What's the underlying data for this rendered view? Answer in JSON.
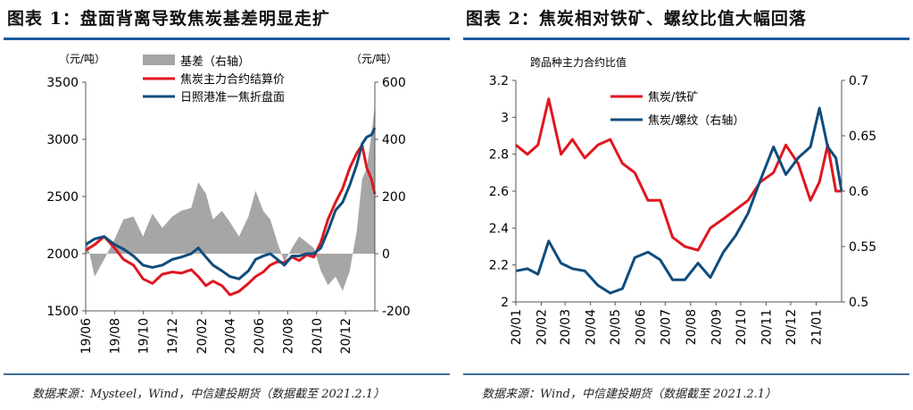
{
  "left": {
    "title": "图表 1：盘面背离导致焦炭基差明显走扩",
    "source": "数据来源：Mysteel，Wind，中信建投期货（数据截至 2021.2.1）",
    "chart_data": {
      "type": "line",
      "y_left_unit": "（元/吨）",
      "y_right_unit": "（元/吨）",
      "ylim_left": [
        1500,
        3500
      ],
      "ylim_right": [
        -200,
        600
      ],
      "yticks_left": [
        "1500",
        "2000",
        "2500",
        "3000",
        "3500"
      ],
      "yticks_right": [
        "-200",
        "0",
        "200",
        "400",
        "600"
      ],
      "xticks": [
        "19/06",
        "19/08",
        "19/10",
        "19/12",
        "20/02",
        "20/04",
        "20/06",
        "20/08",
        "20/10",
        "20/12"
      ],
      "xlim": [
        "2019-06-01",
        "2021-02-01"
      ],
      "legend_position": "top-center",
      "series": [
        {
          "name": "基差（右轴）",
          "axis": "right",
          "kind": "area",
          "color": "#a6a6a6",
          "points": [
            [
              "2019-06-01",
              60
            ],
            [
              "2019-06-20",
              -80
            ],
            [
              "2019-07-10",
              -20
            ],
            [
              "2019-08-01",
              50
            ],
            [
              "2019-08-20",
              120
            ],
            [
              "2019-09-10",
              130
            ],
            [
              "2019-09-30",
              60
            ],
            [
              "2019-10-20",
              140
            ],
            [
              "2019-11-10",
              90
            ],
            [
              "2019-12-01",
              130
            ],
            [
              "2019-12-20",
              150
            ],
            [
              "2020-01-10",
              160
            ],
            [
              "2020-01-25",
              250
            ],
            [
              "2020-02-10",
              210
            ],
            [
              "2020-02-25",
              120
            ],
            [
              "2020-03-15",
              150
            ],
            [
              "2020-04-01",
              110
            ],
            [
              "2020-04-20",
              60
            ],
            [
              "2020-05-10",
              130
            ],
            [
              "2020-05-25",
              220
            ],
            [
              "2020-06-10",
              150
            ],
            [
              "2020-06-25",
              120
            ],
            [
              "2020-07-10",
              40
            ],
            [
              "2020-07-25",
              -30
            ],
            [
              "2020-08-10",
              20
            ],
            [
              "2020-08-25",
              60
            ],
            [
              "2020-09-10",
              40
            ],
            [
              "2020-09-25",
              20
            ],
            [
              "2020-10-10",
              -60
            ],
            [
              "2020-10-25",
              -110
            ],
            [
              "2020-11-10",
              -80
            ],
            [
              "2020-11-25",
              -130
            ],
            [
              "2020-12-10",
              -60
            ],
            [
              "2020-12-25",
              80
            ],
            [
              "2021-01-05",
              260
            ],
            [
              "2021-01-15",
              300
            ],
            [
              "2021-01-25",
              420
            ],
            [
              "2021-02-01",
              520
            ]
          ]
        },
        {
          "name": "焦炭主力合约结算价",
          "axis": "left",
          "kind": "line",
          "color": "#e0161e",
          "points": [
            [
              "2019-06-01",
              2030
            ],
            [
              "2019-06-20",
              2080
            ],
            [
              "2019-07-10",
              2150
            ],
            [
              "2019-08-01",
              2050
            ],
            [
              "2019-08-20",
              1950
            ],
            [
              "2019-09-10",
              1900
            ],
            [
              "2019-09-30",
              1780
            ],
            [
              "2019-10-20",
              1740
            ],
            [
              "2019-11-10",
              1820
            ],
            [
              "2019-12-01",
              1840
            ],
            [
              "2019-12-20",
              1830
            ],
            [
              "2020-01-10",
              1860
            ],
            [
              "2020-01-25",
              1800
            ],
            [
              "2020-02-10",
              1720
            ],
            [
              "2020-02-25",
              1760
            ],
            [
              "2020-03-15",
              1720
            ],
            [
              "2020-04-01",
              1640
            ],
            [
              "2020-04-20",
              1670
            ],
            [
              "2020-05-10",
              1740
            ],
            [
              "2020-05-25",
              1800
            ],
            [
              "2020-06-10",
              1840
            ],
            [
              "2020-06-25",
              1900
            ],
            [
              "2020-07-10",
              1930
            ],
            [
              "2020-07-25",
              1920
            ],
            [
              "2020-08-10",
              1970
            ],
            [
              "2020-08-25",
              1940
            ],
            [
              "2020-09-10",
              1990
            ],
            [
              "2020-09-25",
              1970
            ],
            [
              "2020-10-10",
              2100
            ],
            [
              "2020-10-25",
              2300
            ],
            [
              "2020-11-10",
              2450
            ],
            [
              "2020-11-25",
              2570
            ],
            [
              "2020-12-10",
              2750
            ],
            [
              "2020-12-25",
              2880
            ],
            [
              "2021-01-05",
              2950
            ],
            [
              "2021-01-15",
              2750
            ],
            [
              "2021-01-25",
              2650
            ],
            [
              "2021-02-01",
              2520
            ]
          ]
        },
        {
          "name": "日照港准一焦折盘面",
          "axis": "left",
          "kind": "line",
          "color": "#0f4c7c",
          "points": [
            [
              "2019-06-01",
              2080
            ],
            [
              "2019-06-20",
              2130
            ],
            [
              "2019-07-10",
              2150
            ],
            [
              "2019-08-01",
              2080
            ],
            [
              "2019-08-20",
              2040
            ],
            [
              "2019-09-10",
              1980
            ],
            [
              "2019-09-30",
              1900
            ],
            [
              "2019-10-20",
              1880
            ],
            [
              "2019-11-10",
              1900
            ],
            [
              "2019-12-01",
              1950
            ],
            [
              "2019-12-20",
              1970
            ],
            [
              "2020-01-10",
              2000
            ],
            [
              "2020-01-25",
              2050
            ],
            [
              "2020-02-10",
              1970
            ],
            [
              "2020-02-25",
              1900
            ],
            [
              "2020-03-15",
              1850
            ],
            [
              "2020-04-01",
              1800
            ],
            [
              "2020-04-20",
              1780
            ],
            [
              "2020-05-10",
              1850
            ],
            [
              "2020-05-25",
              1950
            ],
            [
              "2020-06-10",
              1980
            ],
            [
              "2020-06-25",
              2000
            ],
            [
              "2020-07-10",
              1950
            ],
            [
              "2020-07-25",
              1900
            ],
            [
              "2020-08-10",
              1980
            ],
            [
              "2020-08-25",
              1980
            ],
            [
              "2020-09-10",
              2000
            ],
            [
              "2020-09-25",
              2000
            ],
            [
              "2020-10-10",
              2050
            ],
            [
              "2020-10-25",
              2200
            ],
            [
              "2020-11-10",
              2380
            ],
            [
              "2020-11-25",
              2450
            ],
            [
              "2020-12-10",
              2600
            ],
            [
              "2020-12-25",
              2780
            ],
            [
              "2021-01-05",
              2960
            ],
            [
              "2021-01-15",
              3020
            ],
            [
              "2021-01-25",
              3040
            ],
            [
              "2021-02-01",
              3100
            ]
          ]
        }
      ]
    }
  },
  "right": {
    "title": "图表 2：焦炭相对铁矿、螺纹比值大幅回落",
    "source": "数据来源：Wind，中信建投期货（数据截至 2021.2.1）",
    "chart_data": {
      "type": "line",
      "subtitle": "跨品种主力合约比值",
      "ylim_left": [
        2.0,
        3.2
      ],
      "ylim_right": [
        0.5,
        0.7
      ],
      "yticks_left": [
        "2",
        "2.2",
        "2.4",
        "2.6",
        "2.8",
        "3",
        "3.2"
      ],
      "yticks_right": [
        "0.5",
        "0.55",
        "0.6",
        "0.65",
        "0.7"
      ],
      "xticks": [
        "20/01",
        "20/02",
        "20/03",
        "20/04",
        "20/05",
        "20/06",
        "20/07",
        "20/08",
        "20/09",
        "20/10",
        "20/11",
        "20/12",
        "21/01"
      ],
      "xlim": [
        "2020-01-01",
        "2021-02-01"
      ],
      "legend_position": "top-center",
      "series": [
        {
          "name": "焦炭/铁矿",
          "axis": "left",
          "kind": "line",
          "color": "#e0161e",
          "points": [
            [
              "2020-01-01",
              2.85
            ],
            [
              "2020-01-15",
              2.8
            ],
            [
              "2020-01-28",
              2.85
            ],
            [
              "2020-02-10",
              3.1
            ],
            [
              "2020-02-25",
              2.8
            ],
            [
              "2020-03-10",
              2.88
            ],
            [
              "2020-03-25",
              2.78
            ],
            [
              "2020-04-10",
              2.85
            ],
            [
              "2020-04-25",
              2.88
            ],
            [
              "2020-05-10",
              2.75
            ],
            [
              "2020-05-25",
              2.7
            ],
            [
              "2020-06-10",
              2.55
            ],
            [
              "2020-06-25",
              2.55
            ],
            [
              "2020-07-10",
              2.35
            ],
            [
              "2020-07-25",
              2.3
            ],
            [
              "2020-08-10",
              2.28
            ],
            [
              "2020-08-25",
              2.4
            ],
            [
              "2020-09-10",
              2.45
            ],
            [
              "2020-09-25",
              2.5
            ],
            [
              "2020-10-10",
              2.55
            ],
            [
              "2020-10-25",
              2.65
            ],
            [
              "2020-11-10",
              2.7
            ],
            [
              "2020-11-25",
              2.85
            ],
            [
              "2020-12-10",
              2.75
            ],
            [
              "2020-12-25",
              2.55
            ],
            [
              "2021-01-05",
              2.65
            ],
            [
              "2021-01-15",
              2.85
            ],
            [
              "2021-01-25",
              2.6
            ],
            [
              "2021-02-01",
              2.6
            ]
          ]
        },
        {
          "name": "焦炭/螺纹（右轴）",
          "axis": "right",
          "kind": "line",
          "color": "#0f4c7c",
          "points": [
            [
              "2020-01-01",
              0.528
            ],
            [
              "2020-01-15",
              0.53
            ],
            [
              "2020-01-28",
              0.525
            ],
            [
              "2020-02-10",
              0.555
            ],
            [
              "2020-02-25",
              0.535
            ],
            [
              "2020-03-10",
              0.53
            ],
            [
              "2020-03-25",
              0.528
            ],
            [
              "2020-04-10",
              0.515
            ],
            [
              "2020-04-25",
              0.508
            ],
            [
              "2020-05-10",
              0.512
            ],
            [
              "2020-05-25",
              0.54
            ],
            [
              "2020-06-10",
              0.545
            ],
            [
              "2020-06-25",
              0.538
            ],
            [
              "2020-07-10",
              0.52
            ],
            [
              "2020-07-25",
              0.52
            ],
            [
              "2020-08-10",
              0.535
            ],
            [
              "2020-08-25",
              0.522
            ],
            [
              "2020-09-10",
              0.545
            ],
            [
              "2020-09-25",
              0.56
            ],
            [
              "2020-10-10",
              0.58
            ],
            [
              "2020-10-25",
              0.61
            ],
            [
              "2020-11-10",
              0.64
            ],
            [
              "2020-11-25",
              0.615
            ],
            [
              "2020-12-10",
              0.63
            ],
            [
              "2020-12-25",
              0.64
            ],
            [
              "2021-01-05",
              0.675
            ],
            [
              "2021-01-15",
              0.64
            ],
            [
              "2021-01-25",
              0.63
            ],
            [
              "2021-02-01",
              0.6
            ]
          ]
        }
      ]
    }
  }
}
